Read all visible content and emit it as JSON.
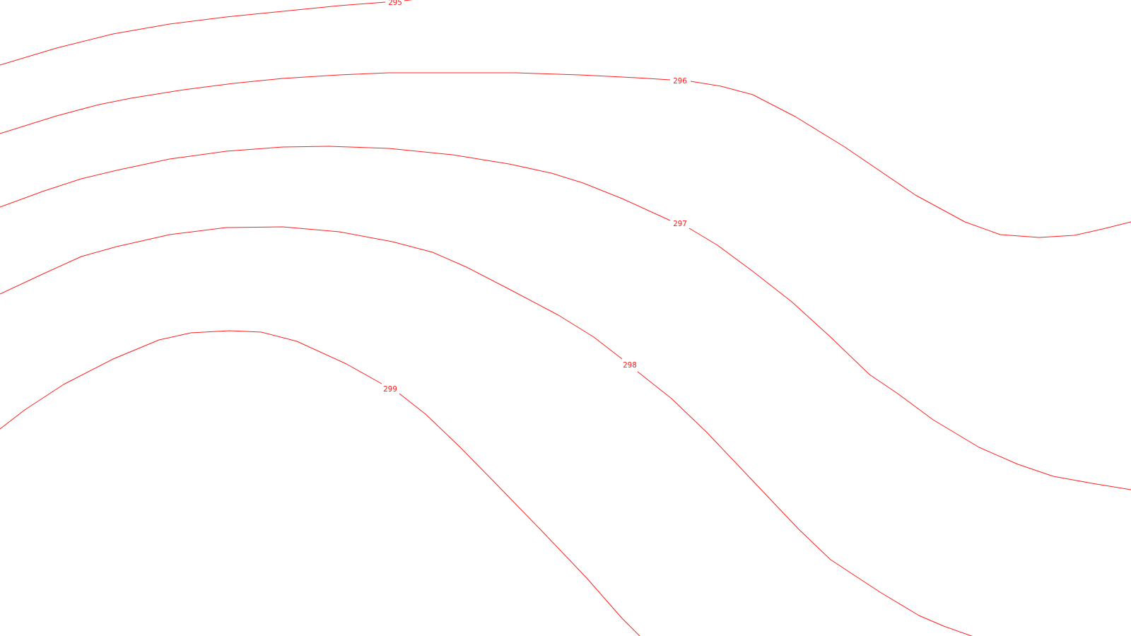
{
  "map": {
    "line_color": "#ff2020",
    "background": "#ffffff",
    "contour_labels": {
      "c295": "295",
      "c296": "296",
      "c297": "297",
      "c298": "298",
      "c299": "299"
    }
  }
}
